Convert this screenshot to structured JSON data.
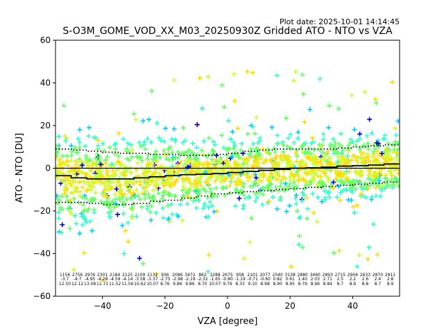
{
  "chart_data": {
    "type": "scatter",
    "title": "S-O3M_GOME_VOD_XX_M03_20250930Z Gridded ATO - NTO vs VZA",
    "plot_date": "Plot date: 2025-10-01 14:14:45",
    "xlabel": "VZA [degree]",
    "ylabel": "ATO - NTO [DU]",
    "xlim": [
      -55,
      55
    ],
    "ylim": [
      -60,
      60
    ],
    "xticks": [
      -40,
      -20,
      0,
      20,
      40
    ],
    "yticks": [
      -60,
      -40,
      -20,
      0,
      20,
      40,
      60
    ],
    "marker": "+",
    "marker_colors": [
      "#0000dd",
      "#00ccff",
      "#33ffcc",
      "#66ff66",
      "#ccff33",
      "#ffdd00"
    ],
    "zero_line": 0,
    "mean_curve": {
      "x": [
        -55,
        -50,
        -45,
        -40,
        -35,
        -30,
        -25,
        -20,
        -15,
        -10,
        -5,
        0,
        5,
        10,
        15,
        20,
        25,
        30,
        35,
        40,
        45,
        50,
        55
      ],
      "y": [
        -3.5,
        -4.5,
        -5,
        -5,
        -5,
        -4.5,
        -4,
        -3.5,
        -3,
        -2.8,
        -2.5,
        -2,
        -1.5,
        -1,
        -0.5,
        0,
        0.2,
        0.5,
        1,
        1.2,
        1.5,
        2,
        2.5
      ]
    },
    "upper_sigma_curve": {
      "x": [
        -55,
        -50,
        -45,
        -40,
        -35,
        -30,
        -25,
        -20,
        -15,
        -10,
        -5,
        0,
        5,
        10,
        15,
        20,
        25,
        30,
        35,
        40,
        45,
        50,
        55
      ],
      "y": [
        9,
        8.5,
        8,
        7.5,
        7,
        7,
        6.5,
        6.5,
        6,
        6,
        6.5,
        7,
        8,
        8.5,
        9,
        9,
        9,
        9,
        9.5,
        10,
        10.5,
        11,
        11.5
      ]
    },
    "lower_sigma_curve": {
      "x": [
        -55,
        -50,
        -45,
        -40,
        -35,
        -30,
        -25,
        -20,
        -15,
        -10,
        -5,
        0,
        5,
        10,
        15,
        20,
        25,
        30,
        35,
        40,
        45,
        50,
        55
      ],
      "y": [
        -16,
        -16,
        -16.5,
        -17,
        -17,
        -16.5,
        -15.5,
        -15,
        -14,
        -13,
        -12,
        -11.5,
        -11,
        -10.5,
        -10,
        -9.5,
        -9,
        -8.5,
        -8,
        -7.5,
        -7,
        -6.5,
        -6
      ]
    },
    "bin_stats": {
      "x": [
        -52,
        -48,
        -44,
        -40,
        -36,
        -32,
        -28,
        -24,
        -20,
        -16,
        -12,
        -8,
        -4,
        0,
        4,
        8,
        12,
        16,
        20,
        24,
        28,
        32,
        36,
        40,
        44,
        48,
        52
      ],
      "counts": [
        "1156",
        "2756",
        "2976",
        "2301",
        "2184",
        "2125",
        "2109",
        "2132",
        "936",
        "2086",
        "3472",
        "862",
        "1288",
        "2675",
        "958",
        "2101",
        "2077",
        "2540",
        "3138",
        "2880",
        "3460",
        "2893",
        "2715",
        "2904",
        "2633",
        "2870",
        "2911"
      ],
      "means": [
        "-3.7",
        "-4.7",
        "-4.95",
        "-4.28",
        "-4.59",
        "-4.14",
        "-3.58",
        "-3.37",
        "-2.75",
        "-2.98",
        "-2.19",
        "-2.32",
        "-1.65",
        "-0.80",
        "-1.19",
        "-0.71",
        "-0.60",
        "0.82",
        "0.61",
        "1.40",
        "2.03",
        "2.71",
        "2.5",
        "2.2",
        "2.6",
        "2.4",
        "2.8"
      ],
      "stds": [
        "12.50",
        "12.12",
        "13.08",
        "11.71",
        "11.52",
        "11.56",
        "10.62",
        "10.07",
        "8.76",
        "9.86",
        "9.86",
        "8.70",
        "10.07",
        "9.79",
        "8.33",
        "9.10",
        "8.98",
        "8.90",
        "8.95",
        "8.79",
        "8.96",
        "8.84",
        "8.7",
        "8.9",
        "8.8",
        "8.7",
        "8.9"
      ]
    }
  }
}
